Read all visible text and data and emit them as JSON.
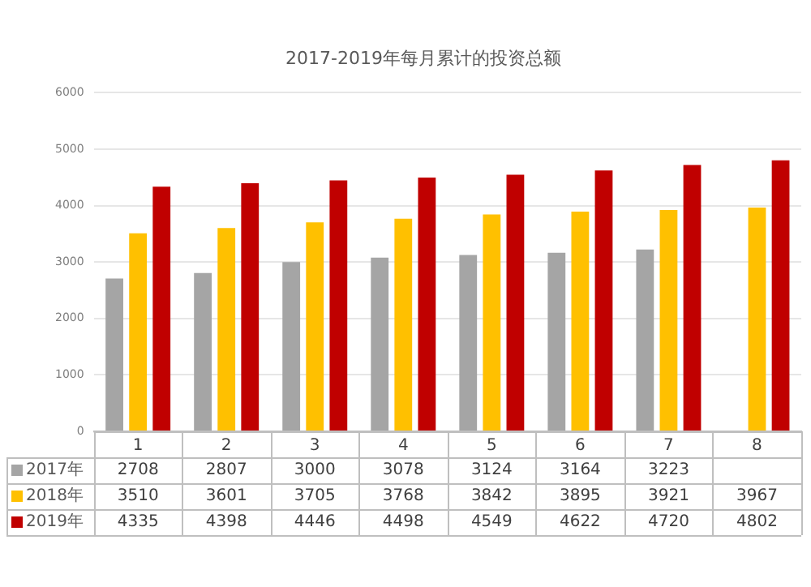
{
  "chart_data": {
    "type": "bar",
    "title": "2017-2019年每月累计的投资总额",
    "categories": [
      "1",
      "2",
      "3",
      "4",
      "5",
      "6",
      "7",
      "8"
    ],
    "series": [
      {
        "name": "2017年",
        "color": "#a5a5a5",
        "values": [
          2708,
          2807,
          3000,
          3078,
          3124,
          3164,
          3223,
          null
        ]
      },
      {
        "name": "2018年",
        "color": "#ffc000",
        "values": [
          3510,
          3601,
          3705,
          3768,
          3842,
          3895,
          3921,
          3967
        ]
      },
      {
        "name": "2019年",
        "color": "#c00000",
        "values": [
          4335,
          4398,
          4446,
          4498,
          4549,
          4622,
          4720,
          4802
        ]
      }
    ],
    "ylim": [
      0,
      6000
    ],
    "yticks": [
      0,
      1000,
      2000,
      3000,
      4000,
      5000,
      6000
    ],
    "grid": "y",
    "legend": "bottom",
    "data_labels": true
  }
}
